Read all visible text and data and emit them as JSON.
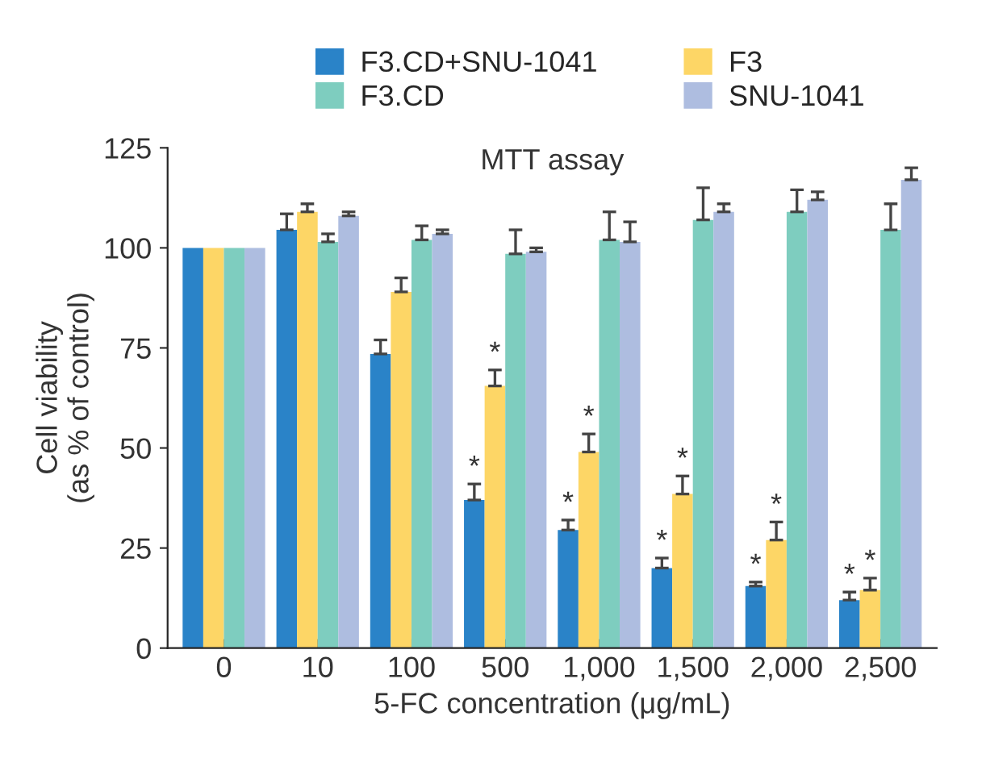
{
  "chart_data": {
    "type": "bar",
    "title": "MTT assay",
    "xlabel": "5-FC concentration (μg/mL)",
    "ylabel": "Cell viability\n(as % of control)",
    "categories": [
      "0",
      "10",
      "100",
      "500",
      "1,000",
      "1,500",
      "2,000",
      "2,500"
    ],
    "series": [
      {
        "name": "F3.CD+SNU-1041",
        "color": "#2a83c8",
        "values": [
          100,
          104.5,
          73.5,
          37,
          29.5,
          20,
          15.5,
          12
        ],
        "errors": [
          null,
          [
            104.5,
            108.5
          ],
          [
            73.5,
            77
          ],
          [
            37,
            41
          ],
          [
            29.5,
            32
          ],
          [
            20,
            22.5
          ],
          [
            15.5,
            16.5
          ],
          [
            12,
            14
          ]
        ],
        "value_labels": [
          null,
          null,
          null,
          "*",
          "*",
          "*",
          "*",
          "*"
        ]
      },
      {
        "name": "F3",
        "color": "#fdd666",
        "values": [
          100,
          109,
          89,
          65.5,
          49,
          38.5,
          27,
          14.5
        ],
        "errors": [
          null,
          [
            109,
            111
          ],
          [
            89,
            92.5
          ],
          [
            65.5,
            69.5
          ],
          [
            49,
            53.5
          ],
          [
            38.5,
            43
          ],
          [
            27,
            31.5
          ],
          [
            14.5,
            17.5
          ]
        ],
        "value_labels": [
          null,
          null,
          null,
          "*",
          "*",
          "*",
          "*",
          "*"
        ]
      },
      {
        "name": "F3.CD",
        "color": "#7ecdbf",
        "values": [
          100,
          101.5,
          102,
          98.5,
          102,
          107,
          109,
          104.5
        ],
        "errors": [
          null,
          [
            101.5,
            103.5
          ],
          [
            102,
            105.5
          ],
          [
            98.5,
            104.5
          ],
          [
            102,
            109
          ],
          [
            107,
            115
          ],
          [
            109,
            114.5
          ],
          [
            104.5,
            111
          ]
        ]
      },
      {
        "name": "SNU-1041",
        "color": "#aebde0",
        "values": [
          100,
          108,
          103.5,
          99,
          101.5,
          109,
          112,
          117
        ],
        "errors": [
          null,
          [
            108,
            109
          ],
          [
            103.5,
            104.5
          ],
          [
            99,
            100
          ],
          [
            101.5,
            106.5
          ],
          [
            109,
            111
          ],
          [
            112,
            114
          ],
          [
            117,
            120
          ]
        ]
      }
    ],
    "ylim": [
      0,
      125
    ],
    "yticks": [
      0,
      25,
      50,
      75,
      100,
      125
    ],
    "grid": false,
    "legend": "top"
  }
}
